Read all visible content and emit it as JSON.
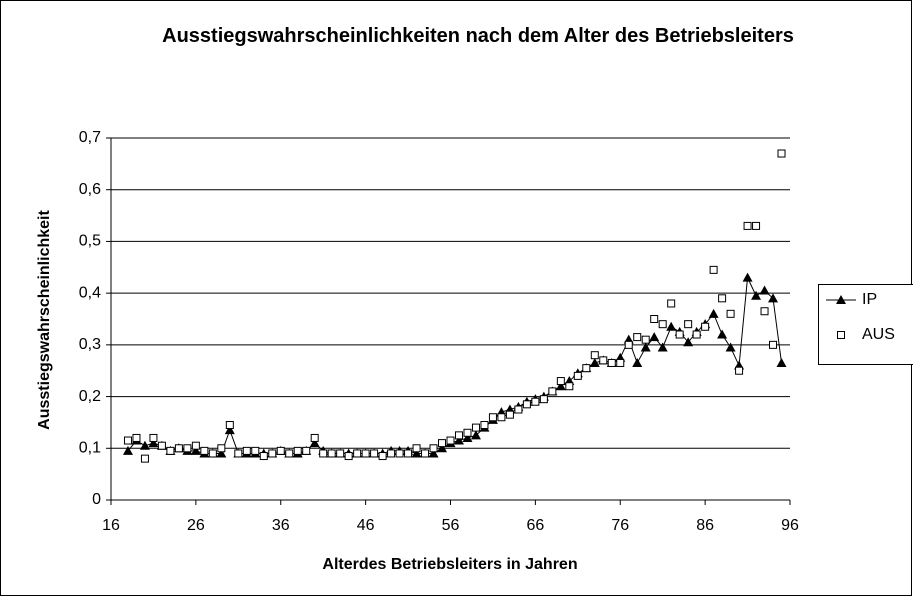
{
  "chart_data": {
    "type": "scatter",
    "title": "Ausstiegswahrscheinlichkeiten nach dem Alter des Betriebsleiters",
    "x_label": "Alterdes Betriebsleiters  in Jahren",
    "y_label": "Ausstiegswahrscheinlichkeit",
    "x": [
      18,
      19,
      20,
      21,
      22,
      23,
      24,
      25,
      26,
      27,
      28,
      29,
      30,
      31,
      32,
      33,
      34,
      35,
      36,
      37,
      38,
      39,
      40,
      41,
      42,
      43,
      44,
      45,
      46,
      47,
      48,
      49,
      50,
      51,
      52,
      53,
      54,
      55,
      56,
      57,
      58,
      59,
      60,
      61,
      62,
      63,
      64,
      65,
      66,
      67,
      68,
      69,
      70,
      71,
      72,
      73,
      74,
      75,
      76,
      77,
      78,
      79,
      80,
      81,
      82,
      83,
      84,
      85,
      86,
      87,
      88,
      89,
      90,
      91,
      92,
      93,
      94,
      95
    ],
    "series": [
      {
        "name": "IP",
        "color": "#000000",
        "marker": "triangle",
        "line": true,
        "values": [
          0.095,
          0.115,
          0.105,
          0.11,
          0.105,
          0.095,
          0.1,
          0.095,
          0.095,
          0.09,
          0.09,
          0.09,
          0.135,
          0.09,
          0.09,
          0.09,
          0.09,
          0.09,
          0.095,
          0.09,
          0.09,
          0.095,
          0.11,
          0.095,
          0.09,
          0.09,
          0.09,
          0.09,
          0.09,
          0.09,
          0.09,
          0.095,
          0.095,
          0.095,
          0.09,
          0.09,
          0.09,
          0.1,
          0.11,
          0.115,
          0.12,
          0.125,
          0.14,
          0.155,
          0.17,
          0.175,
          0.18,
          0.19,
          0.195,
          0.2,
          0.21,
          0.22,
          0.23,
          0.245,
          0.255,
          0.265,
          0.27,
          0.265,
          0.275,
          0.31,
          0.265,
          0.295,
          0.315,
          0.295,
          0.335,
          0.325,
          0.305,
          0.325,
          0.34,
          0.36,
          0.32,
          0.295,
          0.26,
          0.43,
          0.395,
          0.405,
          0.39,
          0.265
        ]
      },
      {
        "name": "AUS",
        "color": "#000000",
        "marker": "square",
        "line": false,
        "values": [
          0.115,
          0.12,
          0.08,
          0.12,
          0.105,
          0.095,
          0.1,
          0.1,
          0.105,
          0.095,
          0.09,
          0.1,
          0.145,
          0.09,
          0.095,
          0.095,
          0.085,
          0.09,
          0.095,
          0.09,
          0.095,
          0.095,
          0.12,
          0.09,
          0.09,
          0.09,
          0.085,
          0.09,
          0.09,
          0.09,
          0.085,
          0.09,
          0.09,
          0.09,
          0.1,
          0.09,
          0.1,
          0.11,
          0.115,
          0.125,
          0.13,
          0.14,
          0.145,
          0.16,
          0.16,
          0.165,
          0.175,
          0.185,
          0.19,
          0.195,
          0.21,
          0.23,
          0.22,
          0.24,
          0.255,
          0.28,
          0.27,
          0.265,
          0.265,
          0.3,
          0.315,
          0.31,
          0.35,
          0.34,
          0.38,
          0.32,
          0.34,
          0.32,
          0.335,
          0.445,
          0.39,
          0.36,
          0.25,
          0.53,
          0.53,
          0.365,
          0.3,
          0.67
        ]
      }
    ],
    "xlim": [
      16,
      96
    ],
    "xticks": [
      16,
      26,
      36,
      46,
      56,
      66,
      76,
      86,
      96
    ],
    "ylim": [
      0,
      0.7
    ],
    "yticks": [
      0,
      {
        "value": 0.1,
        "label": "0,1"
      },
      {
        "value": 0.2,
        "label": "0,2"
      },
      {
        "value": 0.3,
        "label": "0,3"
      },
      {
        "value": 0.4,
        "label": "0,4"
      },
      {
        "value": 0.5,
        "label": "0,5"
      },
      {
        "value": 0.6,
        "label": "0,6"
      },
      {
        "value": 0.7,
        "label": "0,7"
      }
    ],
    "grid": true,
    "legend": "right"
  }
}
